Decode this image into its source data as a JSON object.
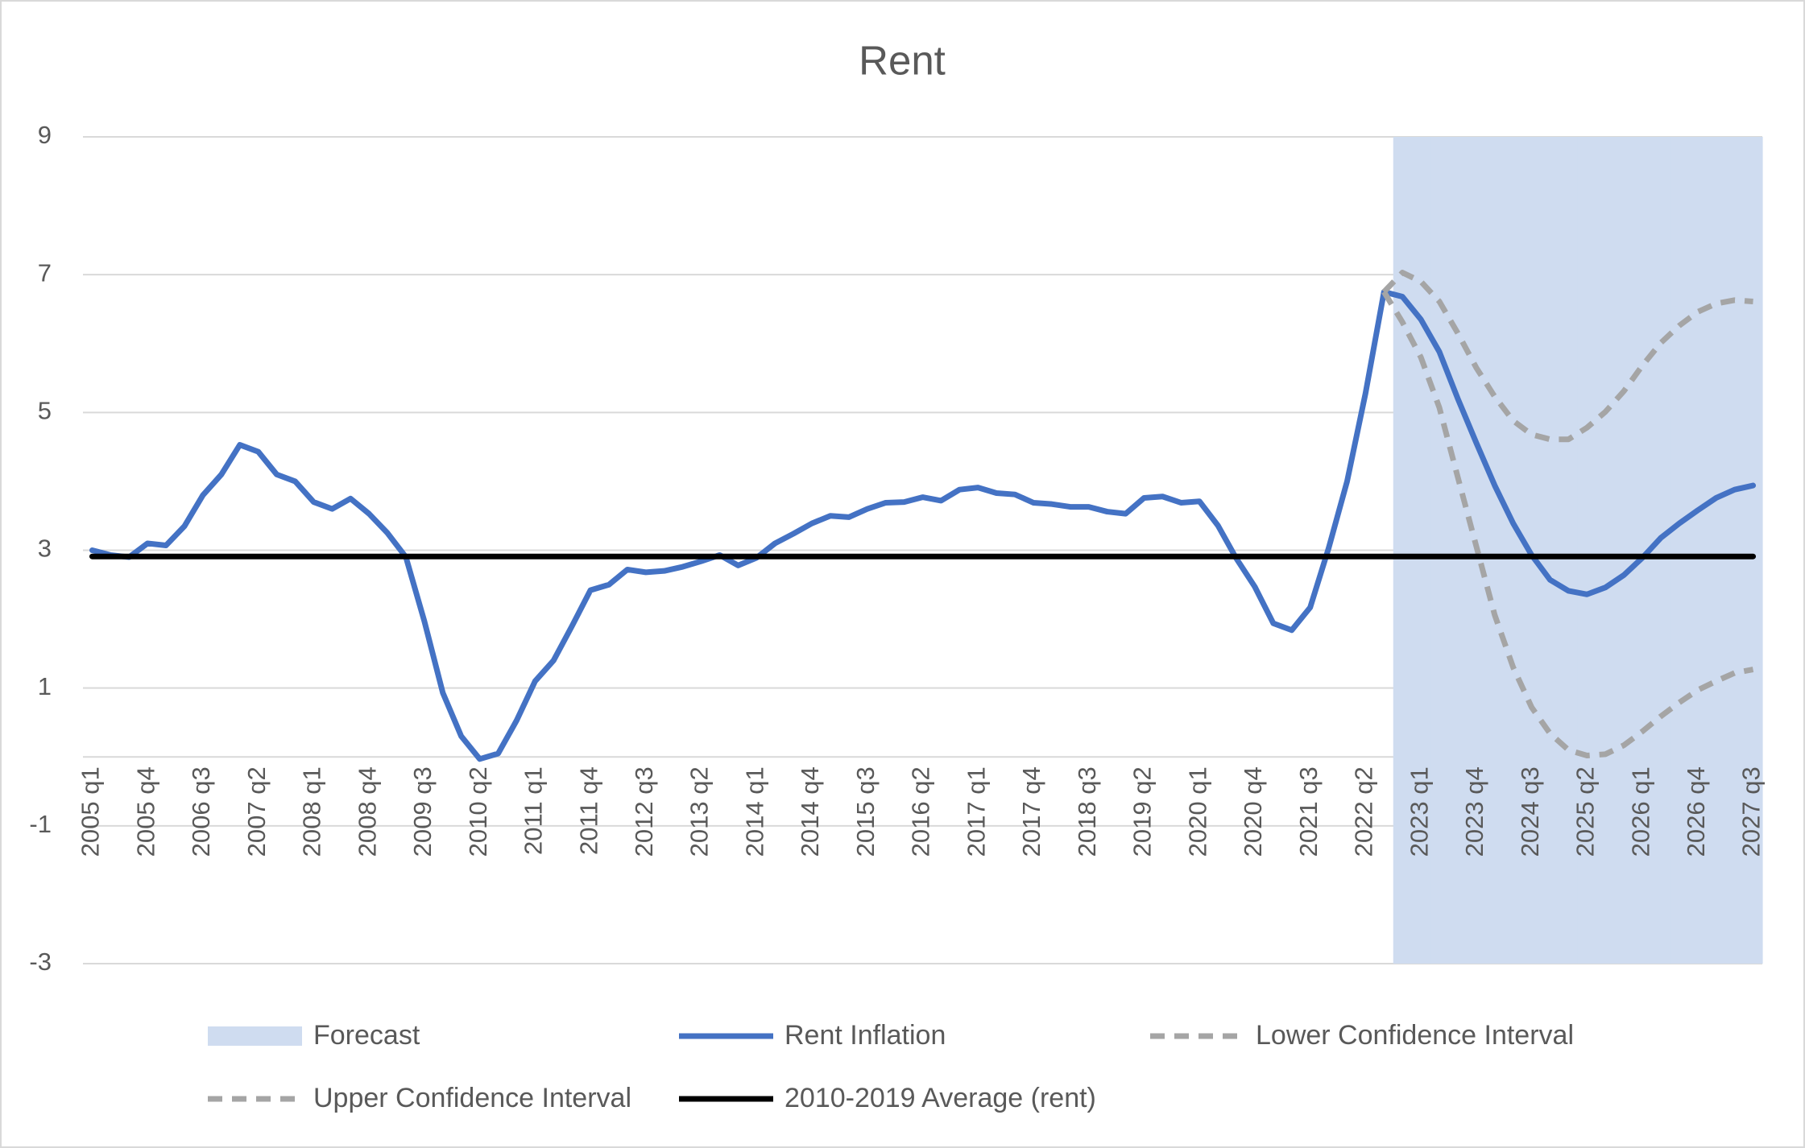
{
  "chart_data": {
    "type": "line",
    "title": "Rent",
    "categories": [
      "2005 q1",
      null,
      null,
      "2005 q4",
      null,
      null,
      "2006 q3",
      null,
      null,
      "2007 q2",
      null,
      null,
      "2008 q1",
      null,
      null,
      "2008 q4",
      null,
      null,
      "2009 q3",
      null,
      null,
      "2010 q2",
      null,
      null,
      "2011 q1",
      null,
      null,
      "2011 q4",
      null,
      null,
      "2012 q3",
      null,
      null,
      "2013 q2",
      null,
      null,
      "2014 q1",
      null,
      null,
      "2014 q4",
      null,
      null,
      "2015 q3",
      null,
      null,
      "2016 q2",
      null,
      null,
      "2017 q1",
      null,
      null,
      "2017 q4",
      null,
      null,
      "2018 q3",
      null,
      null,
      "2019 q2",
      null,
      null,
      "2020 q1",
      null,
      null,
      "2020 q4",
      null,
      null,
      "2021 q3",
      null,
      null,
      "2022 q2",
      null,
      null,
      "2023 q1",
      null,
      null,
      "2023 q4",
      null,
      null,
      "2024 q3",
      null,
      null,
      "2025 q2",
      null,
      null,
      "2026 q1",
      null,
      null,
      "2026 q4",
      null,
      null,
      "2027 q3"
    ],
    "ylim": [
      -3,
      9
    ],
    "yticks": [
      -3,
      -1,
      1,
      3,
      5,
      7,
      9
    ],
    "grid": true,
    "series": [
      {
        "name": "Forecast",
        "type": "bar",
        "color": "#cfdcf0",
        "values": [
          null,
          null,
          null,
          null,
          null,
          null,
          null,
          null,
          null,
          null,
          null,
          null,
          null,
          null,
          null,
          null,
          null,
          null,
          null,
          null,
          null,
          null,
          null,
          null,
          null,
          null,
          null,
          null,
          null,
          null,
          null,
          null,
          null,
          null,
          null,
          null,
          null,
          null,
          null,
          null,
          null,
          null,
          null,
          null,
          null,
          null,
          null,
          null,
          null,
          null,
          null,
          null,
          null,
          null,
          null,
          null,
          null,
          null,
          null,
          null,
          null,
          null,
          null,
          null,
          null,
          null,
          null,
          null,
          null,
          null,
          null,
          9,
          9,
          9,
          9,
          9,
          9,
          9,
          9,
          9,
          9,
          9,
          9,
          9,
          9,
          9,
          9,
          9,
          9,
          9,
          9
        ],
        "low_values": [
          null,
          null,
          null,
          null,
          null,
          null,
          null,
          null,
          null,
          null,
          null,
          null,
          null,
          null,
          null,
          null,
          null,
          null,
          null,
          null,
          null,
          null,
          null,
          null,
          null,
          null,
          null,
          null,
          null,
          null,
          null,
          null,
          null,
          null,
          null,
          null,
          null,
          null,
          null,
          null,
          null,
          null,
          null,
          null,
          null,
          null,
          null,
          null,
          null,
          null,
          null,
          null,
          null,
          null,
          null,
          null,
          null,
          null,
          null,
          null,
          null,
          null,
          null,
          null,
          null,
          null,
          null,
          null,
          null,
          null,
          null,
          -3,
          -3,
          -3,
          -3,
          -3,
          -3,
          -3,
          -3,
          -3,
          -3,
          -3,
          -3,
          -3,
          -3,
          -3,
          -3,
          -3,
          -3,
          -3,
          -3
        ]
      },
      {
        "name": "Rent Inflation",
        "type": "line",
        "color": "#4472c4",
        "dashed": false,
        "values": [
          3.0,
          2.93,
          2.9,
          3.1,
          3.07,
          3.35,
          3.8,
          4.1,
          4.53,
          4.43,
          4.1,
          4.0,
          3.7,
          3.6,
          3.75,
          3.53,
          3.25,
          2.9,
          1.97,
          0.93,
          0.3,
          -0.03,
          0.05,
          0.53,
          1.1,
          1.4,
          1.9,
          2.42,
          2.5,
          2.72,
          2.68,
          2.7,
          2.76,
          2.84,
          2.93,
          2.78,
          2.89,
          3.1,
          3.24,
          3.39,
          3.5,
          3.48,
          3.6,
          3.69,
          3.7,
          3.77,
          3.72,
          3.88,
          3.91,
          3.83,
          3.81,
          3.69,
          3.67,
          3.63,
          3.63,
          3.56,
          3.53,
          3.76,
          3.78,
          3.69,
          3.71,
          3.36,
          2.88,
          2.47,
          1.94,
          1.84,
          2.17,
          3.03,
          4.0,
          5.28,
          6.75,
          6.68,
          6.35,
          5.88,
          5.2,
          4.56,
          3.94,
          3.39,
          2.93,
          2.57,
          2.41,
          2.36,
          2.46,
          2.64,
          2.89,
          3.18,
          3.39,
          3.58,
          3.76,
          3.88,
          3.94
        ]
      },
      {
        "name": "Lower Confidence Interval",
        "type": "line",
        "color": "#a5a5a5",
        "dashed": true,
        "values": [
          null,
          null,
          null,
          null,
          null,
          null,
          null,
          null,
          null,
          null,
          null,
          null,
          null,
          null,
          null,
          null,
          null,
          null,
          null,
          null,
          null,
          null,
          null,
          null,
          null,
          null,
          null,
          null,
          null,
          null,
          null,
          null,
          null,
          null,
          null,
          null,
          null,
          null,
          null,
          null,
          null,
          null,
          null,
          null,
          null,
          null,
          null,
          null,
          null,
          null,
          null,
          null,
          null,
          null,
          null,
          null,
          null,
          null,
          null,
          null,
          null,
          null,
          null,
          null,
          null,
          null,
          null,
          null,
          null,
          null,
          6.75,
          6.31,
          5.8,
          5.07,
          4.06,
          3.06,
          2.06,
          1.3,
          0.72,
          0.34,
          0.1,
          0.02,
          0.04,
          0.17,
          0.37,
          0.59,
          0.79,
          0.97,
          1.1,
          1.22,
          1.27
        ]
      },
      {
        "name": "Upper Confidence Interval",
        "type": "line",
        "color": "#a5a5a5",
        "dashed": true,
        "values": [
          null,
          null,
          null,
          null,
          null,
          null,
          null,
          null,
          null,
          null,
          null,
          null,
          null,
          null,
          null,
          null,
          null,
          null,
          null,
          null,
          null,
          null,
          null,
          null,
          null,
          null,
          null,
          null,
          null,
          null,
          null,
          null,
          null,
          null,
          null,
          null,
          null,
          null,
          null,
          null,
          null,
          null,
          null,
          null,
          null,
          null,
          null,
          null,
          null,
          null,
          null,
          null,
          null,
          null,
          null,
          null,
          null,
          null,
          null,
          null,
          null,
          null,
          null,
          null,
          null,
          null,
          null,
          null,
          null,
          null,
          6.75,
          7.03,
          6.9,
          6.61,
          6.15,
          5.65,
          5.23,
          4.88,
          4.68,
          4.61,
          4.61,
          4.78,
          5.01,
          5.31,
          5.68,
          6.01,
          6.26,
          6.46,
          6.58,
          6.63,
          6.61
        ]
      },
      {
        "name": "2010-2019 Average (rent)",
        "type": "line",
        "color": "#000000",
        "dashed": false,
        "values": [
          2.91,
          2.91,
          2.91,
          2.91,
          2.91,
          2.91,
          2.91,
          2.91,
          2.91,
          2.91,
          2.91,
          2.91,
          2.91,
          2.91,
          2.91,
          2.91,
          2.91,
          2.91,
          2.91,
          2.91,
          2.91,
          2.91,
          2.91,
          2.91,
          2.91,
          2.91,
          2.91,
          2.91,
          2.91,
          2.91,
          2.91,
          2.91,
          2.91,
          2.91,
          2.91,
          2.91,
          2.91,
          2.91,
          2.91,
          2.91,
          2.91,
          2.91,
          2.91,
          2.91,
          2.91,
          2.91,
          2.91,
          2.91,
          2.91,
          2.91,
          2.91,
          2.91,
          2.91,
          2.91,
          2.91,
          2.91,
          2.91,
          2.91,
          2.91,
          2.91,
          2.91,
          2.91,
          2.91,
          2.91,
          2.91,
          2.91,
          2.91,
          2.91,
          2.91,
          2.91,
          2.91,
          2.91,
          2.91,
          2.91,
          2.91,
          2.91,
          2.91,
          2.91,
          2.91,
          2.91,
          2.91,
          2.91,
          2.91,
          2.91,
          2.91,
          2.91,
          2.91,
          2.91,
          2.91,
          2.91,
          2.91
        ]
      }
    ]
  }
}
